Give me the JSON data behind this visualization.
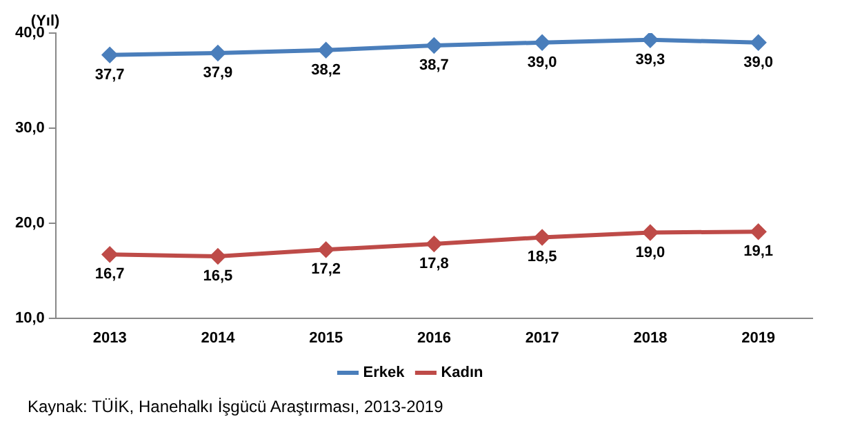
{
  "chart_data": {
    "type": "line",
    "ylabel": "(Yıl)",
    "categories": [
      "2013",
      "2014",
      "2015",
      "2016",
      "2017",
      "2018",
      "2019"
    ],
    "series": [
      {
        "name": "Erkek",
        "color": "#4a7ebb",
        "values": [
          37.7,
          37.9,
          38.2,
          38.7,
          39.0,
          39.3,
          39.0
        ],
        "value_labels": [
          "37,7",
          "37,9",
          "38,2",
          "38,7",
          "39,0",
          "39,3",
          "39,0"
        ]
      },
      {
        "name": "Kadın",
        "color": "#be4b48",
        "values": [
          16.7,
          16.5,
          17.2,
          17.8,
          18.5,
          19.0,
          19.1
        ],
        "value_labels": [
          "16,7",
          "16,5",
          "17,2",
          "17,8",
          "18,5",
          "19,0",
          "19,1"
        ]
      }
    ],
    "ylim": [
      10,
      40
    ],
    "yticks": [
      {
        "value": 10,
        "label": "10,0"
      },
      {
        "value": 20,
        "label": "20,0"
      },
      {
        "value": 30,
        "label": "30,0"
      },
      {
        "value": 40,
        "label": "40,0"
      }
    ],
    "grid": false,
    "legend": "bottom",
    "marker": "diamond",
    "line_style": "solid",
    "annotations": [
      "Kaynak: TÜİK, Hanehalkı İşgücü Araştırması, 2013-2019"
    ]
  }
}
